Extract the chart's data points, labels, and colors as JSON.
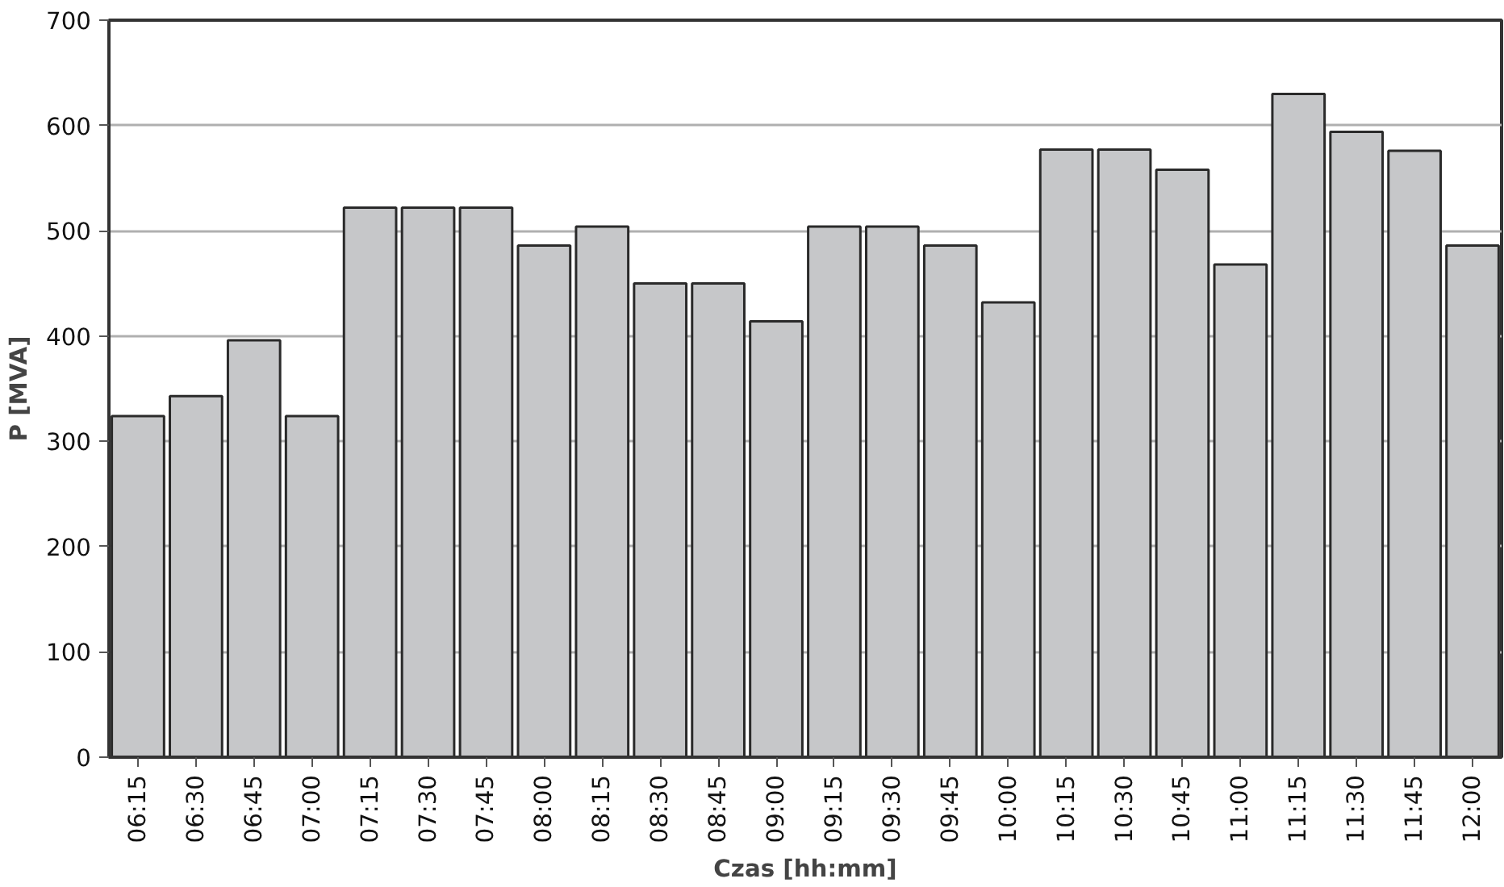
{
  "chart_data": {
    "type": "bar",
    "xlabel": "Czas [hh:mm]",
    "ylabel": "P [MVA]",
    "categories": [
      "06:15",
      "06:30",
      "06:45",
      "07:00",
      "07:15",
      "07:30",
      "07:45",
      "08:00",
      "08:15",
      "08:30",
      "08:45",
      "09:00",
      "09:15",
      "09:30",
      "09:45",
      "10:00",
      "10:15",
      "10:30",
      "10:45",
      "11:00",
      "11:15",
      "11:30",
      "11:45",
      "12:00"
    ],
    "values": [
      324,
      343,
      396,
      324,
      522,
      522,
      522,
      486,
      504,
      450,
      450,
      414,
      504,
      504,
      486,
      432,
      577,
      577,
      558,
      468,
      630,
      594,
      576,
      486
    ],
    "color": "#c6c7c9",
    "ylim": [
      0,
      700
    ],
    "yticks": [
      0,
      100,
      200,
      300,
      400,
      500,
      600,
      700
    ],
    "grid": "y"
  }
}
